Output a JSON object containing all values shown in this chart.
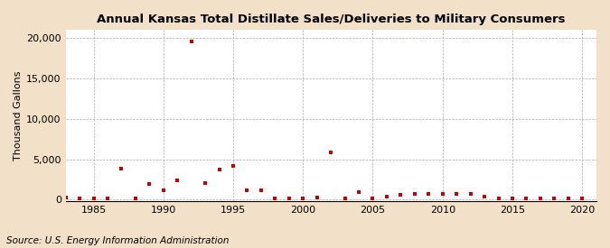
{
  "title": "Annual Kansas Total Distillate Sales/Deliveries to Military Consumers",
  "ylabel": "Thousand Gallons",
  "source": "Source: U.S. Energy Information Administration",
  "background_color": "#f2e0c8",
  "plot_background_color": "#ffffff",
  "marker_color": "#cc0000",
  "marker_size": 3,
  "xlim": [
    1983,
    2021
  ],
  "ylim": [
    -200,
    21000
  ],
  "yticks": [
    0,
    5000,
    10000,
    15000,
    20000
  ],
  "xticks": [
    1985,
    1990,
    1995,
    2000,
    2005,
    2010,
    2015,
    2020
  ],
  "years": [
    1983,
    1984,
    1985,
    1986,
    1987,
    1988,
    1989,
    1990,
    1991,
    1992,
    1993,
    1994,
    1995,
    1996,
    1997,
    1998,
    1999,
    2000,
    2001,
    2002,
    2003,
    2004,
    2005,
    2006,
    2007,
    2008,
    2009,
    2010,
    2011,
    2012,
    2013,
    2014,
    2015,
    2016,
    2017,
    2018,
    2019,
    2020
  ],
  "values": [
    300,
    100,
    100,
    100,
    3800,
    100,
    1900,
    1100,
    2400,
    19600,
    2000,
    3700,
    4200,
    1100,
    1100,
    200,
    200,
    100,
    300,
    5800,
    100,
    900,
    100,
    400,
    600,
    700,
    700,
    700,
    700,
    700,
    400,
    100,
    100,
    100,
    100,
    100,
    100,
    100
  ],
  "title_fontsize": 9.5,
  "ylabel_fontsize": 8,
  "tick_fontsize": 8,
  "source_fontsize": 7.5
}
